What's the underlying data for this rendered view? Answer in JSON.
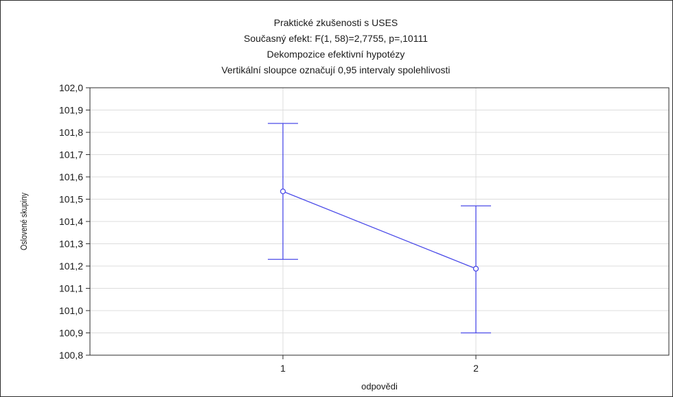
{
  "chart_data": {
    "type": "line",
    "title_lines": [
      "Praktické zkušenosti s USES",
      "Současný efekt: F(1, 58)=2,7755, p=,10111",
      "Dekompozice efektivní hypotézy",
      "Vertikální sloupce označují 0,95 intervaly spolehlivosti"
    ],
    "xlabel": "odpovědi",
    "ylabel": "Oslovené skupiny",
    "categories": [
      "1",
      "2"
    ],
    "series": [
      {
        "values": [
          101.535,
          101.188
        ],
        "ci_lower": [
          101.23,
          100.9
        ],
        "ci_upper": [
          101.84,
          101.47
        ],
        "color": "#4a4ae8"
      }
    ],
    "ylim": [
      100.8,
      102.0
    ],
    "yticks": [
      "100,8",
      "100,9",
      "101,0",
      "101,1",
      "101,2",
      "101,3",
      "101,4",
      "101,5",
      "101,6",
      "101,7",
      "101,8",
      "101,9",
      "102,0"
    ],
    "grid": true,
    "legend": "none"
  }
}
